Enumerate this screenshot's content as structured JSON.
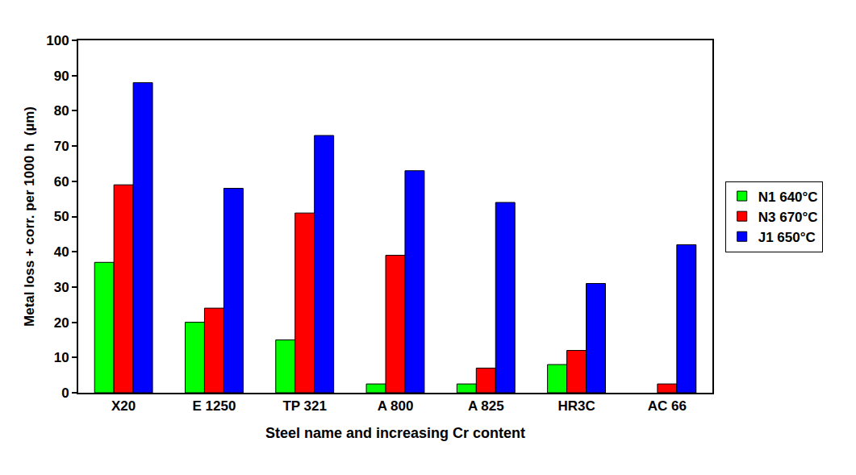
{
  "chart_data": {
    "type": "bar",
    "x_label": "Steel name and increasing Cr content",
    "y_label": "Metal loss + corr. per 1000 h  (µm)",
    "categories": [
      "X20",
      "E 1250",
      "TP 321",
      "A 800",
      "A 825",
      "HR3C",
      "AC 66"
    ],
    "series": [
      {
        "name": "N1 640°C",
        "color": "#00ff00",
        "values": [
          37,
          20,
          15,
          2.5,
          2.5,
          8,
          null
        ]
      },
      {
        "name": "N3 670°C",
        "color": "#ff0000",
        "values": [
          59,
          24,
          51,
          39,
          7,
          12,
          2.5
        ]
      },
      {
        "name": "J1 650°C",
        "color": "#0000ff",
        "values": [
          88,
          58,
          73,
          63,
          54,
          31,
          42
        ]
      }
    ],
    "ylim": [
      0,
      100
    ],
    "yticks": [
      0,
      10,
      20,
      30,
      40,
      50,
      60,
      70,
      80,
      90,
      100
    ],
    "grid": false,
    "legend": "right"
  }
}
